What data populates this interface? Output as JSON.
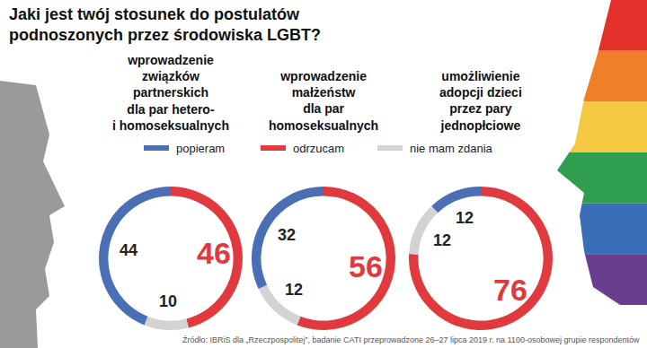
{
  "chart_data": {
    "type": "pie",
    "title": "Jaki jest twój stosunek do postulatów\npodnoszonych przez środowiska LGBT?",
    "categories": [
      "popieram",
      "odrzucam",
      "nie mam zdania"
    ],
    "colors": [
      "#4a6fb5",
      "#e03a3e",
      "#d3d3d3"
    ],
    "series": [
      {
        "name": "wprowadzenie\nzwiązków\npartnerskich\ndla par hetero-\ni homoseksualnych",
        "values": [
          44,
          46,
          10
        ]
      },
      {
        "name": "wprowadzenie\nmałżeństw\ndla par\nhomoseksualnych",
        "values": [
          32,
          56,
          12
        ]
      },
      {
        "name": "umożliwienie\nadopcji dzieci\nprzez pary\njednopłciowe",
        "values": [
          12,
          76,
          12
        ]
      }
    ],
    "data_labels": true,
    "annotations": [
      "Źródło: IBRiS dla „Rzeczpospolitej”, badanie CATI przeprowadzone 26–27 lipca 2019 r. na 1100-osobowej grupie respondentów"
    ]
  }
}
